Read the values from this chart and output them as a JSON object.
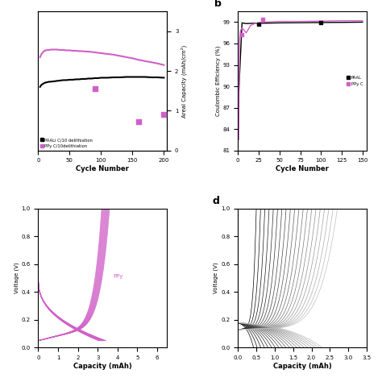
{
  "panel_a": {
    "paali_x": [
      3,
      5,
      8,
      10,
      12,
      15,
      18,
      20,
      25,
      30,
      35,
      40,
      45,
      50,
      55,
      60,
      65,
      70,
      75,
      80,
      85,
      90,
      95,
      100,
      110,
      120,
      130,
      140,
      150,
      160,
      170,
      180,
      190,
      200
    ],
    "paali_y": [
      1.6,
      1.65,
      1.68,
      1.7,
      1.71,
      1.72,
      1.73,
      1.73,
      1.74,
      1.75,
      1.76,
      1.77,
      1.77,
      1.78,
      1.78,
      1.79,
      1.79,
      1.8,
      1.8,
      1.81,
      1.81,
      1.82,
      1.82,
      1.83,
      1.83,
      1.84,
      1.84,
      1.85,
      1.85,
      1.85,
      1.85,
      1.84,
      1.84,
      1.83
    ],
    "ppy_line_x": [
      3,
      5,
      8,
      10,
      12,
      15,
      18,
      20,
      25,
      30,
      35,
      40,
      45,
      50,
      55,
      60,
      65,
      70,
      75,
      80,
      85,
      90,
      95,
      100,
      110,
      120,
      130,
      140,
      150,
      160,
      170,
      180,
      190,
      200
    ],
    "ppy_line_y": [
      2.35,
      2.42,
      2.48,
      2.51,
      2.52,
      2.53,
      2.53,
      2.54,
      2.54,
      2.54,
      2.53,
      2.53,
      2.52,
      2.52,
      2.51,
      2.51,
      2.5,
      2.5,
      2.49,
      2.49,
      2.48,
      2.47,
      2.46,
      2.45,
      2.43,
      2.41,
      2.38,
      2.35,
      2.32,
      2.28,
      2.25,
      2.22,
      2.19,
      2.15
    ],
    "ppy_scatter_x": [
      90,
      160,
      200
    ],
    "ppy_scatter_y": [
      1.55,
      0.72,
      0.9
    ],
    "xlabel": "Cycle Number",
    "ylabel_right": "Areal Capacity (mAh/cm²)",
    "legend_paali": "PAALi C/10 delithiation",
    "legend_ppy": "PPy C/10delithiation",
    "xlim": [
      0,
      205
    ],
    "ylim_right": [
      0,
      3.5
    ],
    "yticks_right": [
      0,
      1,
      2,
      3
    ]
  },
  "panel_b": {
    "paali_line_x": [
      1,
      5,
      10,
      20,
      30,
      50,
      75,
      100,
      125,
      150
    ],
    "paali_line_y": [
      89.0,
      98.9,
      98.8,
      98.85,
      98.85,
      98.9,
      98.92,
      98.95,
      98.97,
      99.0
    ],
    "ppy_line_x": [
      1,
      2,
      3,
      5,
      10,
      15,
      20,
      25,
      30,
      50,
      75,
      100,
      125,
      150
    ],
    "ppy_line_y": [
      82.5,
      96.5,
      97.8,
      98.2,
      97.5,
      98.5,
      98.8,
      98.9,
      99.0,
      99.1,
      99.1,
      99.15,
      99.2,
      99.2
    ],
    "paali_scatter_x": [
      25,
      100
    ],
    "paali_scatter_y": [
      98.7,
      98.95
    ],
    "ppy_scatter_x": [
      5,
      30
    ],
    "ppy_scatter_y": [
      97.3,
      99.35
    ],
    "xlabel": "Cycle Number",
    "ylabel": "Coulombic Efficiency (%)",
    "legend_paali": "PAAL",
    "legend_ppy": "PPy C",
    "xlim": [
      0,
      155
    ],
    "ylim": [
      81,
      100.5
    ],
    "yticks": [
      81,
      84,
      87,
      90,
      93,
      96,
      99
    ]
  },
  "panel_c": {
    "xlabel": "Capacity (mAh)",
    "ylabel": "",
    "xlim": [
      0,
      6.5
    ],
    "ylim": [
      0,
      1.0
    ],
    "yticks": [
      0,
      1,
      2,
      3,
      4,
      5,
      6
    ],
    "label": "PPy",
    "color": "#e070d0",
    "n_cycles": 18,
    "max_charge_cap_start": 3.6,
    "max_charge_cap_end": 3.2
  },
  "panel_d": {
    "xlabel": "Capacity (mAh)",
    "ylabel": "Voltage (V)",
    "xlim": [
      0,
      3.5
    ],
    "ylim": [
      0,
      1.0
    ],
    "n_cycles": 20
  },
  "colors": {
    "black": "#000000",
    "pink": "#d060c8"
  }
}
